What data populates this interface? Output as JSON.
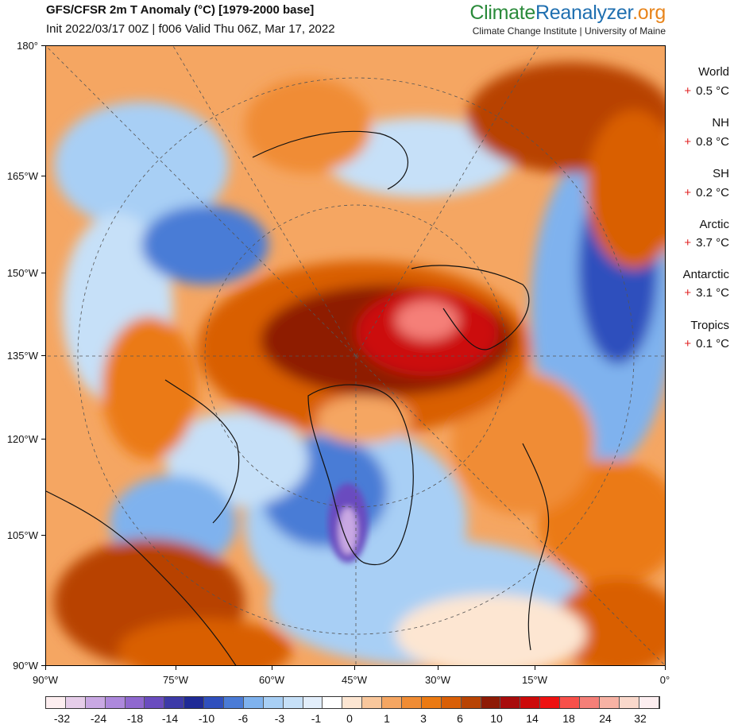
{
  "header": {
    "title": "GFS/CFSR 2m T Anomaly (°C) [1979-2000 base]",
    "subtitle": "Init 2022/03/17 00Z | f006 Valid Thu 06Z, Mar 17, 2022",
    "brand_part1": "Climate",
    "brand_part2": "Reanalyzer",
    "brand_part3": ".org",
    "brand_subtitle": "Climate Change Institute | University of Maine"
  },
  "lat_labels": [
    "180°",
    "165°W",
    "150°W",
    "135°W",
    "120°W",
    "105°W",
    "90°W"
  ],
  "lon_labels": [
    "90°W",
    "75°W",
    "60°W",
    "45°W",
    "30°W",
    "15°W",
    "0°"
  ],
  "stats": [
    {
      "name": "World",
      "sign": "+",
      "value": "0.5 °C"
    },
    {
      "name": "NH",
      "sign": "+",
      "value": "0.8 °C"
    },
    {
      "name": "SH",
      "sign": "+",
      "value": "0.2 °C"
    },
    {
      "name": "Arctic",
      "sign": "+",
      "value": "3.7 °C"
    },
    {
      "name": "Antarctic",
      "sign": "+",
      "value": "3.1 °C"
    },
    {
      "name": "Tropics",
      "sign": "+",
      "value": "0.1 °C"
    }
  ],
  "colorbar": {
    "colors": [
      "#fdeef0",
      "#e6cde9",
      "#c9a8e3",
      "#ad88dc",
      "#8f68cf",
      "#6a4cbf",
      "#3d3aa8",
      "#1f2a96",
      "#2f4fbd",
      "#4a7bd6",
      "#7fb2ee",
      "#a8cff5",
      "#c6e0f8",
      "#e2eefb",
      "#ffffff",
      "#fde6d2",
      "#f9c79c",
      "#f5a662",
      "#f08c34",
      "#eb7a12",
      "#d95f06",
      "#b84303",
      "#8e1b05",
      "#a80c0c",
      "#cc0a0a",
      "#ee1111",
      "#f8504a",
      "#f57f78",
      "#f7b2a4",
      "#fad8cb",
      "#fdeef0"
    ],
    "labels": [
      "-32",
      "-24",
      "-18",
      "-14",
      "-10",
      "-6",
      "-3",
      "-1",
      "0",
      "1",
      "3",
      "6",
      "10",
      "14",
      "18",
      "24",
      "32"
    ]
  },
  "map": {
    "description_colors": {
      "warm": "#eb7a12",
      "hot": "#cc0a0a",
      "cold": "#4a7bd6",
      "neutral": "#ffffff"
    }
  }
}
